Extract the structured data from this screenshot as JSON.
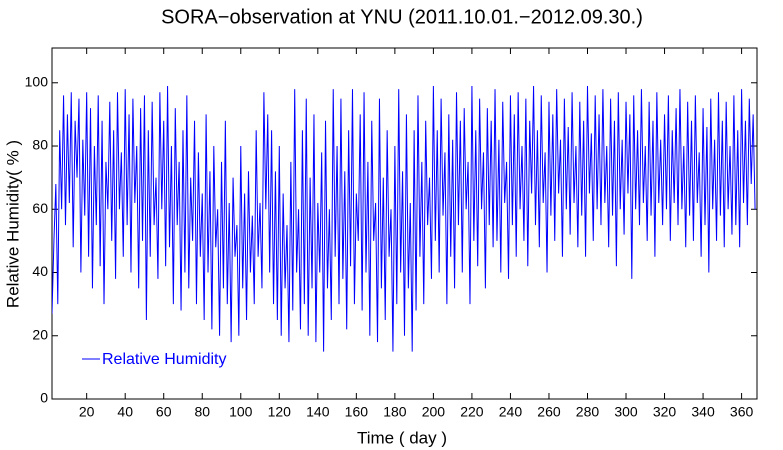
{
  "chart_data": {
    "type": "line",
    "title": "SORA−observation at YNU (2011.10.01.−2012.09.30.)",
    "xlabel": "Time ( day )",
    "ylabel": "Relative Humidity( % )",
    "legend": "lower left",
    "x": [
      2,
      3,
      4,
      5,
      6,
      7,
      8,
      9,
      10,
      11,
      12,
      13,
      14,
      15,
      16,
      17,
      18,
      19,
      20,
      21,
      22,
      23,
      24,
      25,
      26,
      27,
      28,
      29,
      30,
      31,
      32,
      33,
      34,
      35,
      36,
      37,
      38,
      39,
      40,
      41,
      42,
      43,
      44,
      45,
      46,
      47,
      48,
      49,
      50,
      51,
      52,
      53,
      54,
      55,
      56,
      57,
      58,
      59,
      60,
      61,
      62,
      63,
      64,
      65,
      66,
      67,
      68,
      69,
      70,
      71,
      72,
      73,
      74,
      75,
      76,
      77,
      78,
      79,
      80,
      81,
      82,
      83,
      84,
      85,
      86,
      87,
      88,
      89,
      90,
      91,
      92,
      93,
      94,
      95,
      96,
      97,
      98,
      99,
      100,
      101,
      102,
      103,
      104,
      105,
      106,
      107,
      108,
      109,
      110,
      111,
      112,
      113,
      114,
      115,
      116,
      117,
      118,
      119,
      120,
      121,
      122,
      123,
      124,
      125,
      126,
      127,
      128,
      129,
      130,
      131,
      132,
      133,
      134,
      135,
      136,
      137,
      138,
      139,
      140,
      141,
      142,
      143,
      144,
      145,
      146,
      147,
      148,
      149,
      150,
      151,
      152,
      153,
      154,
      155,
      156,
      157,
      158,
      159,
      160,
      161,
      162,
      163,
      164,
      165,
      166,
      167,
      168,
      169,
      170,
      171,
      172,
      173,
      174,
      175,
      176,
      177,
      178,
      179,
      180,
      181,
      182,
      183,
      184,
      185,
      186,
      187,
      188,
      189,
      190,
      191,
      192,
      193,
      194,
      195,
      196,
      197,
      198,
      199,
      200,
      201,
      202,
      203,
      204,
      205,
      206,
      207,
      208,
      209,
      210,
      211,
      212,
      213,
      214,
      215,
      216,
      217,
      218,
      219,
      220,
      221,
      222,
      223,
      224,
      225,
      226,
      227,
      228,
      229,
      230,
      231,
      232,
      233,
      234,
      235,
      236,
      237,
      238,
      239,
      240,
      241,
      242,
      243,
      244,
      245,
      246,
      247,
      248,
      249,
      250,
      251,
      252,
      253,
      254,
      255,
      256,
      257,
      258,
      259,
      260,
      261,
      262,
      263,
      264,
      265,
      266,
      267,
      268,
      269,
      270,
      271,
      272,
      273,
      274,
      275,
      276,
      277,
      278,
      279,
      280,
      281,
      282,
      283,
      284,
      285,
      286,
      287,
      288,
      289,
      290,
      291,
      292,
      293,
      294,
      295,
      296,
      297,
      298,
      299,
      300,
      301,
      302,
      303,
      304,
      305,
      306,
      307,
      308,
      309,
      310,
      311,
      312,
      313,
      314,
      315,
      316,
      317,
      318,
      319,
      320,
      321,
      322,
      323,
      324,
      325,
      326,
      327,
      328,
      329,
      330,
      331,
      332,
      333,
      334,
      335,
      336,
      337,
      338,
      339,
      340,
      341,
      342,
      343,
      344,
      345,
      346,
      347,
      348,
      349,
      350,
      351,
      352,
      353,
      354,
      355,
      356,
      357,
      358,
      359,
      360,
      361,
      362,
      363,
      364,
      365,
      366,
      367
    ],
    "series": [
      {
        "name": "Relative Humidity",
        "color": "#0000ff",
        "values": [
          27,
          50,
          68,
          30,
          85,
          60,
          96,
          55,
          90,
          62,
          97,
          48,
          88,
          70,
          95,
          40,
          82,
          58,
          97,
          45,
          92,
          35,
          80,
          55,
          96,
          42,
          88,
          30,
          75,
          60,
          94,
          50,
          85,
          38,
          97,
          60,
          78,
          45,
          98,
          55,
          90,
          40,
          95,
          62,
          80,
          35,
          92,
          50,
          96,
          25,
          85,
          45,
          94,
          55,
          70,
          38,
          97,
          60,
          88,
          42,
          99,
          48,
          80,
          30,
          92,
          55,
          75,
          28,
          85,
          40,
          96,
          35,
          70,
          50,
          88,
          30,
          78,
          45,
          65,
          25,
          90,
          40,
          72,
          22,
          80,
          48,
          60,
          20,
          75,
          35,
          88,
          30,
          62,
          18,
          70,
          45,
          55,
          20,
          80,
          35,
          65,
          25,
          72,
          40,
          58,
          30,
          85,
          45,
          62,
          35,
          97,
          60,
          90,
          40,
          85,
          30,
          72,
          25,
          80,
          20,
          65,
          35,
          55,
          18,
          75,
          28,
          98,
          40,
          60,
          22,
          85,
          30,
          95,
          20,
          70,
          35,
          90,
          18,
          62,
          40,
          78,
          15,
          88,
          35,
          60,
          25,
          98,
          45,
          80,
          30,
          95,
          38,
          72,
          22,
          85,
          42,
          98,
          30,
          65,
          50,
          90,
          28,
          97,
          40,
          75,
          20,
          88,
          50,
          62,
          18,
          95,
          35,
          70,
          25,
          85,
          45,
          60,
          15,
          80,
          30,
          98,
          40,
          72,
          20,
          90,
          35,
          62,
          15,
          85,
          28,
          96,
          45,
          75,
          30,
          88,
          55,
          70,
          38,
          99,
          50,
          85,
          40,
          95,
          58,
          78,
          30,
          90,
          45,
          82,
          35,
          97,
          55,
          88,
          40,
          92,
          60,
          75,
          30,
          99,
          50,
          85,
          42,
          95,
          60,
          78,
          35,
          92,
          55,
          88,
          48,
          98,
          50,
          82,
          40,
          94,
          62,
          75,
          38,
          96,
          55,
          90,
          45,
          97,
          60,
          80,
          50,
          95,
          42,
          88,
          65,
          99,
          55,
          85,
          48,
          96,
          62,
          78,
          40,
          94,
          58,
          90,
          50,
          98,
          65,
          82,
          45,
          95,
          60,
          86,
          52,
          97,
          62,
          80,
          48,
          94,
          58,
          88,
          45,
          99,
          65,
          84,
          50,
          96,
          60,
          90,
          55,
          98,
          62,
          80,
          48,
          95,
          58,
          88,
          42,
          97,
          60,
          82,
          52,
          94,
          65,
          90,
          38,
          96,
          60,
          85,
          55,
          98,
          62,
          80,
          50,
          94,
          58,
          88,
          45,
          97,
          62,
          82,
          55,
          90,
          60,
          96,
          50,
          85,
          62,
          92,
          55,
          98,
          60,
          80,
          48,
          94,
          58,
          88,
          50,
          96,
          62,
          78,
          45,
          92,
          55,
          86,
          40,
          95,
          60,
          82,
          50,
          97,
          58,
          88,
          48,
          94,
          60,
          80,
          52,
          96,
          55,
          85,
          48,
          98,
          62,
          88,
          55,
          95,
          68,
          90,
          60
        ]
      }
    ],
    "xlim": [
      2,
      368
    ],
    "ylim": [
      0,
      111
    ],
    "xticks": [
      20,
      40,
      60,
      80,
      100,
      120,
      140,
      160,
      180,
      200,
      220,
      240,
      260,
      280,
      300,
      320,
      340,
      360
    ],
    "yticks": [
      0,
      20,
      40,
      60,
      80,
      100
    ]
  }
}
